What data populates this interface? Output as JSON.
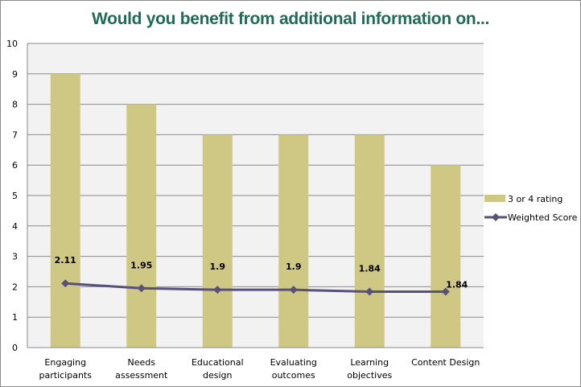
{
  "chart_data": {
    "type": "bar",
    "title": "Would you benefit from additional information on...",
    "xlabel": "",
    "ylabel": "",
    "ylim": [
      0,
      10
    ],
    "yticks": [
      "0",
      "1",
      "2",
      "3",
      "4",
      "5",
      "6",
      "7",
      "8",
      "9",
      "10"
    ],
    "grid": true,
    "legend_position": "right",
    "categories": [
      [
        "Engaging",
        "participants"
      ],
      [
        "Needs",
        "assessment"
      ],
      [
        "Educational",
        "design"
      ],
      [
        "Evaluating",
        "outcomes"
      ],
      [
        "Learning",
        "objectives"
      ],
      [
        "Content Design"
      ]
    ],
    "series": [
      {
        "name": "3 or 4 rating",
        "kind": "bar",
        "color": "#cfc885",
        "values": [
          9,
          8,
          7,
          7,
          7,
          6
        ]
      },
      {
        "name": "Weighted Score",
        "kind": "line",
        "color": "#584f7a",
        "values": [
          2.11,
          1.95,
          1.9,
          1.9,
          1.84,
          1.84
        ],
        "data_labels": [
          "2.11",
          "1.95",
          "1.9",
          "1.9",
          "1.84",
          "1.84"
        ]
      }
    ]
  },
  "colors": {
    "title": "#1f6b56",
    "plot_bg": "#f2f2f2",
    "grid": "#8a8a8a"
  }
}
